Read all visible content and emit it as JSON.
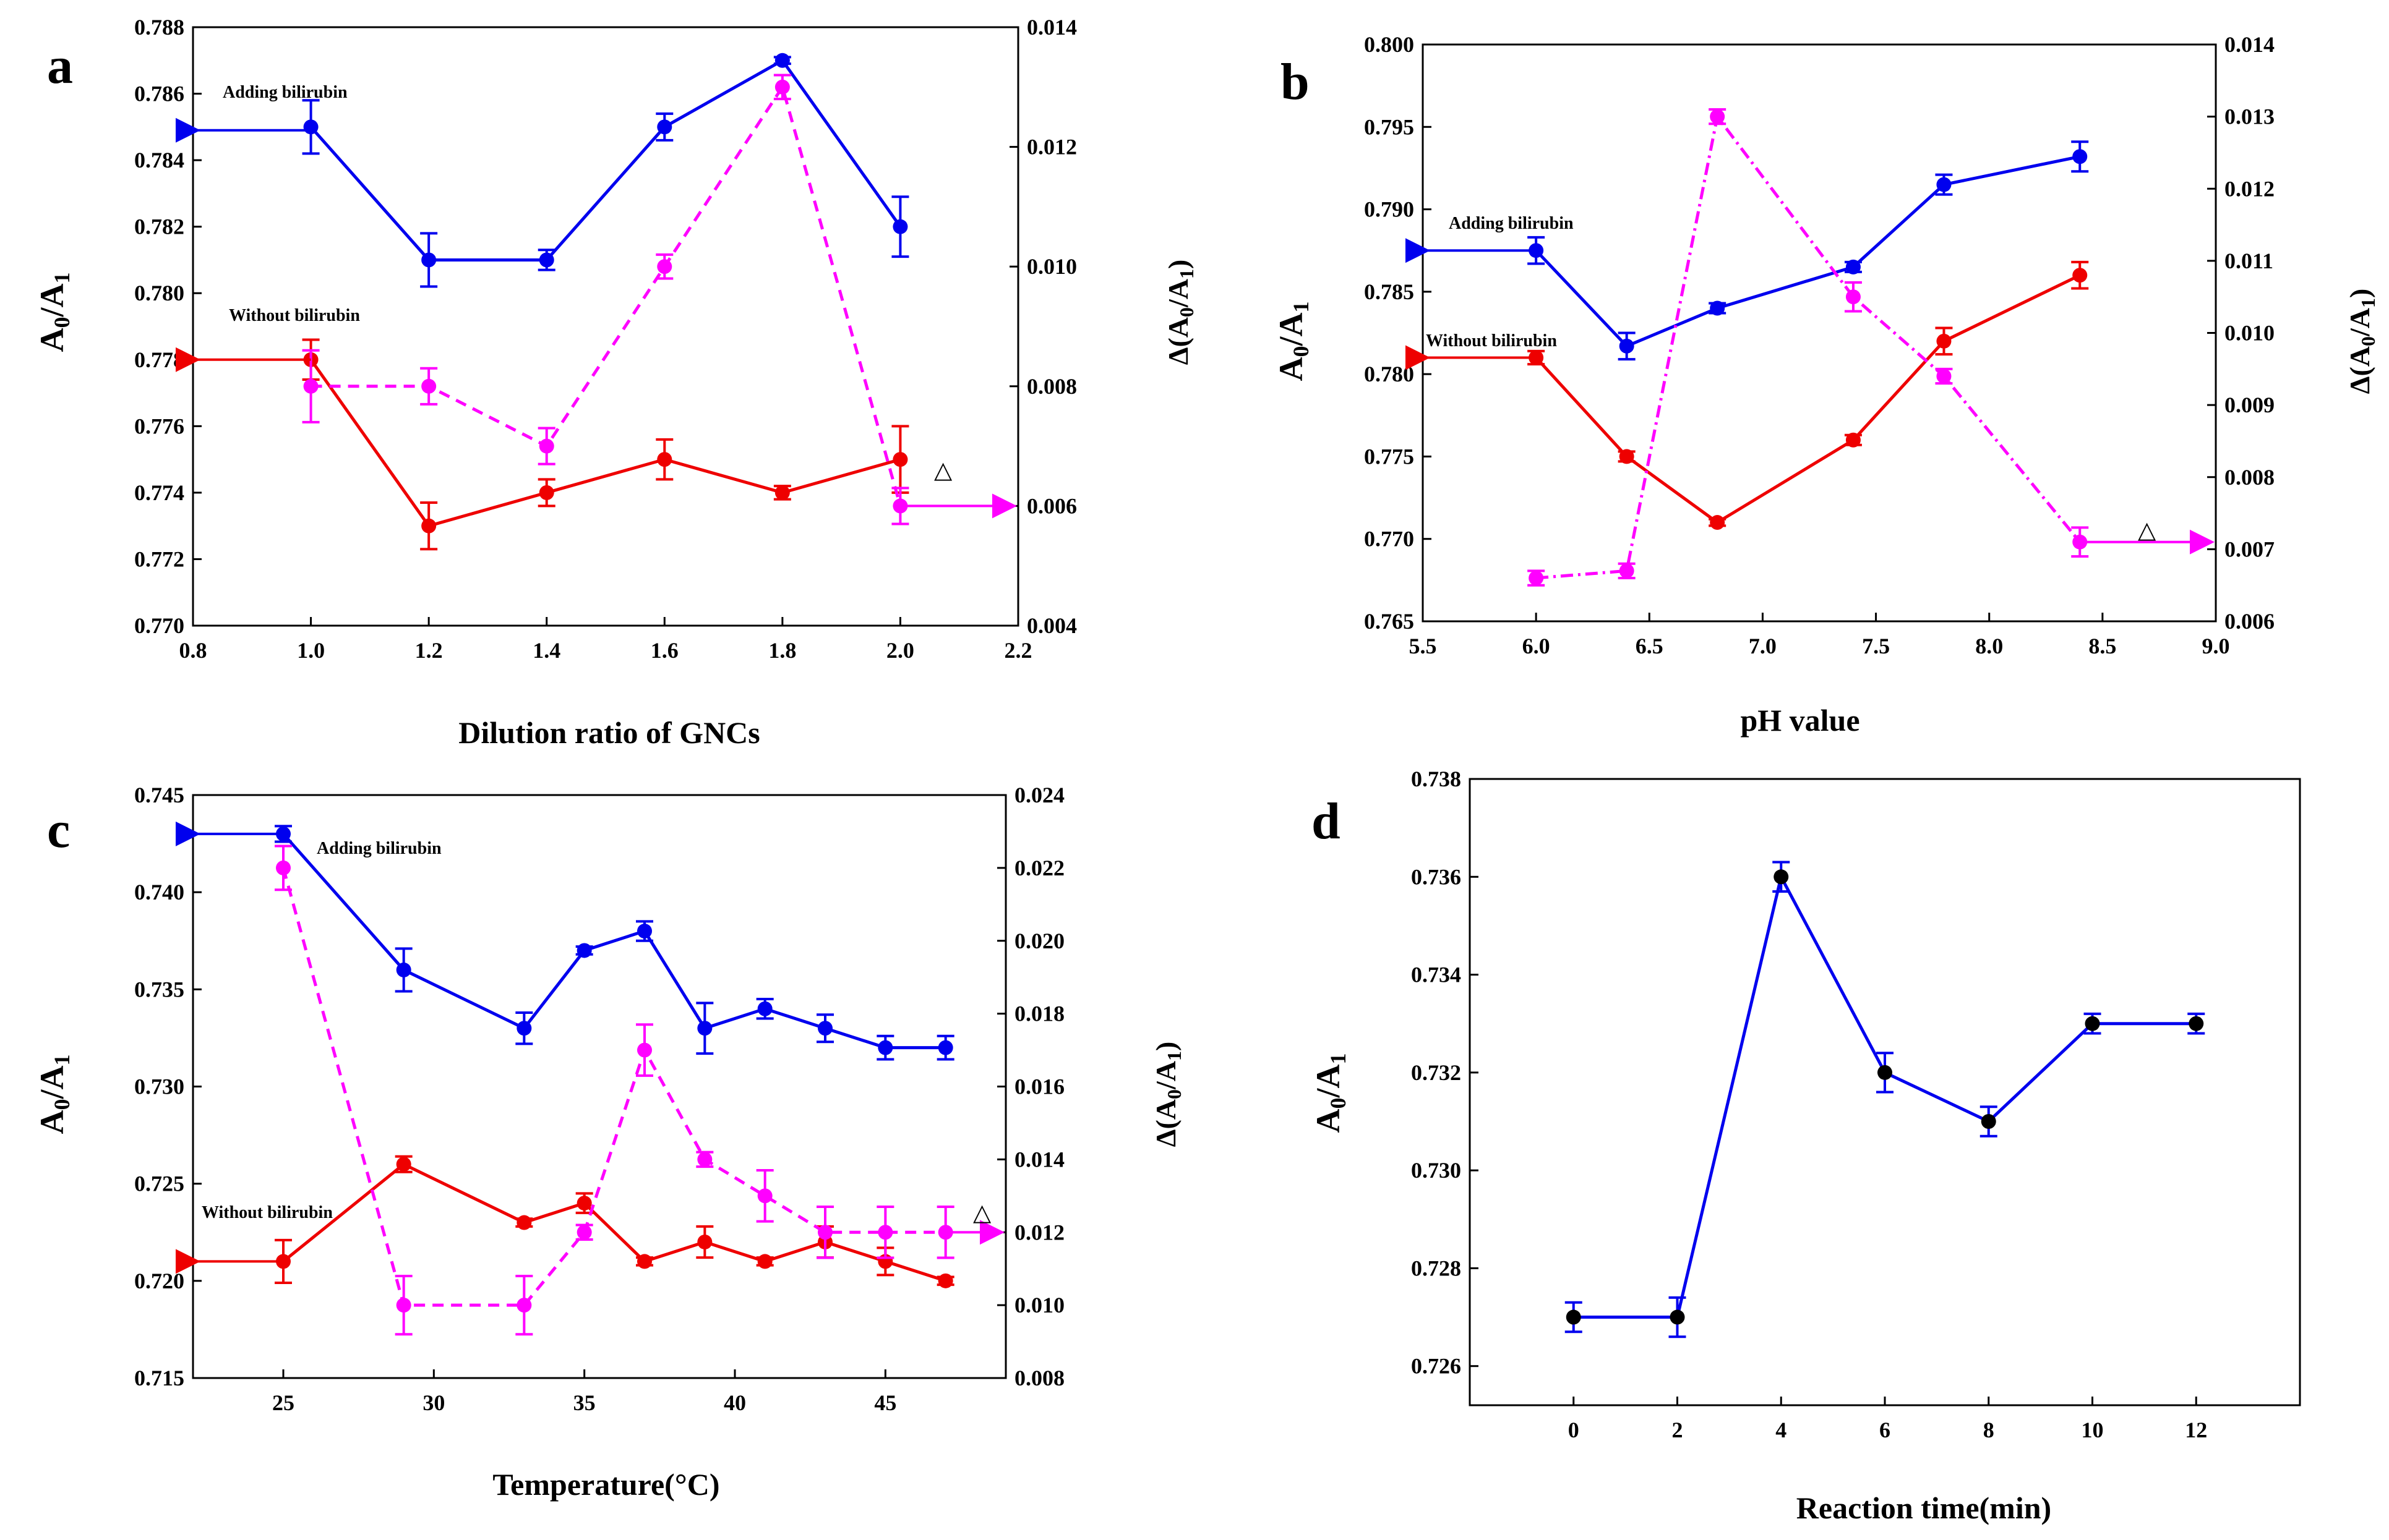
{
  "colors": {
    "adding": "#0000ee",
    "without": "#ee0000",
    "delta": "#ff00ff",
    "neutral": "#000000"
  },
  "chart_data": [
    {
      "panel": "a",
      "type": "line",
      "xlabel": "Dilution ratio of GNCs",
      "ylabel": "A0/A1",
      "y2label": "Δ(A0/A1)",
      "xlim": [
        0.8,
        2.2
      ],
      "ylim": [
        0.77,
        0.788
      ],
      "y2lim": [
        0.004,
        0.014
      ],
      "xticks": [
        "0.8",
        "1.0",
        "1.2",
        "1.4",
        "1.6",
        "1.8",
        "2.0",
        "2.2"
      ],
      "yticks": [
        "0.770",
        "0.772",
        "0.774",
        "0.776",
        "0.778",
        "0.780",
        "0.782",
        "0.784",
        "0.786",
        "0.788"
      ],
      "y2ticks": [
        "0.004",
        "0.006",
        "0.008",
        "0.010",
        "0.012",
        "0.014"
      ],
      "series": [
        {
          "name": "Adding bilirubin",
          "color": "#0000ee",
          "axis": "left",
          "dash": "",
          "x": [
            1.0,
            1.2,
            1.4,
            1.6,
            1.8,
            2.0
          ],
          "values": [
            0.785,
            0.781,
            0.781,
            0.785,
            0.787,
            0.782
          ],
          "err": [
            0.0008,
            0.0008,
            0.0003,
            0.0004,
            0.0001,
            0.0009
          ]
        },
        {
          "name": "Without bilirubin",
          "color": "#ee0000",
          "axis": "left",
          "dash": "",
          "x": [
            1.0,
            1.2,
            1.4,
            1.6,
            1.8,
            2.0
          ],
          "values": [
            0.778,
            0.773,
            0.774,
            0.775,
            0.774,
            0.775
          ],
          "err": [
            0.0006,
            0.0007,
            0.0004,
            0.0006,
            0.0002,
            0.001
          ]
        },
        {
          "name": "Δ",
          "color": "#ff00ff",
          "axis": "right",
          "dash": "18 12",
          "x": [
            1.0,
            1.2,
            1.4,
            1.6,
            1.8,
            2.0
          ],
          "values": [
            0.008,
            0.008,
            0.007,
            0.01,
            0.013,
            0.006
          ],
          "err": [
            0.0006,
            0.0003,
            0.0003,
            0.0002,
            0.0002,
            0.0003
          ]
        }
      ],
      "annotations": [
        "Adding bilirubin",
        "Without bilirubin",
        "△"
      ]
    },
    {
      "panel": "b",
      "type": "line",
      "xlabel": "pH value",
      "ylabel": "A0/A1",
      "y2label": "Δ(A0/A1)",
      "xlim": [
        5.5,
        9.0
      ],
      "ylim": [
        0.765,
        0.8
      ],
      "y2lim": [
        0.006,
        0.014
      ],
      "xticks": [
        "5.5",
        "6.0",
        "6.5",
        "7.0",
        "7.5",
        "8.0",
        "8.5",
        "9.0"
      ],
      "yticks": [
        "0.765",
        "0.770",
        "0.775",
        "0.780",
        "0.785",
        "0.790",
        "0.795",
        "0.800"
      ],
      "y2ticks": [
        "0.006",
        "0.007",
        "0.008",
        "0.009",
        "0.010",
        "0.011",
        "0.012",
        "0.013",
        "0.014"
      ],
      "series": [
        {
          "name": "Adding bilirubin",
          "color": "#0000ee",
          "axis": "left",
          "dash": "",
          "x": [
            6.0,
            6.4,
            6.8,
            7.4,
            7.8,
            8.4
          ],
          "values": [
            0.7875,
            0.7817,
            0.784,
            0.7865,
            0.7915,
            0.7932
          ],
          "err": [
            0.0008,
            0.0008,
            0.0003,
            0.0003,
            0.0006,
            0.0009
          ]
        },
        {
          "name": "Without bilirubin",
          "color": "#ee0000",
          "axis": "left",
          "dash": "",
          "x": [
            6.0,
            6.4,
            6.8,
            7.4,
            7.8,
            8.4
          ],
          "values": [
            0.781,
            0.775,
            0.771,
            0.776,
            0.782,
            0.786
          ],
          "err": [
            0.0004,
            0.0003,
            0.0002,
            0.0003,
            0.0008,
            0.0008
          ]
        },
        {
          "name": "Δ",
          "color": "#ff00ff",
          "axis": "right",
          "dash": "20 8 4 8",
          "x": [
            6.0,
            6.4,
            6.8,
            7.4,
            7.8,
            8.4
          ],
          "values": [
            0.0066,
            0.0067,
            0.013,
            0.0105,
            0.0094,
            0.0071
          ],
          "err": [
            0.0001,
            0.0001,
            0.0001,
            0.0002,
            0.0001,
            0.0002
          ]
        }
      ],
      "annotations": [
        "Adding bilirubin",
        "Without bilirubin",
        "△"
      ]
    },
    {
      "panel": "c",
      "type": "line",
      "xlabel": "Temperature(°C)",
      "ylabel": "A0/A1",
      "y2label": "Δ(A0/A1)",
      "xlim": [
        22,
        49
      ],
      "ylim": [
        0.715,
        0.745
      ],
      "y2lim": [
        0.008,
        0.024
      ],
      "xticks": [
        "25",
        "30",
        "35",
        "40",
        "45"
      ],
      "yticks": [
        "0.715",
        "0.720",
        "0.725",
        "0.730",
        "0.735",
        "0.740",
        "0.745"
      ],
      "y2ticks": [
        "0.008",
        "0.010",
        "0.012",
        "0.014",
        "0.016",
        "0.018",
        "0.020",
        "0.022",
        "0.024"
      ],
      "series": [
        {
          "name": "Adding bilirubin",
          "color": "#0000ee",
          "axis": "left",
          "dash": "",
          "x": [
            25,
            29,
            33,
            35,
            37,
            39,
            41,
            43,
            45,
            47
          ],
          "values": [
            0.743,
            0.736,
            0.733,
            0.737,
            0.738,
            0.733,
            0.734,
            0.733,
            0.732,
            0.732
          ],
          "err": [
            0.0004,
            0.0011,
            0.0008,
            0.0002,
            0.0005,
            0.0013,
            0.0005,
            0.0007,
            0.0006,
            0.0006
          ]
        },
        {
          "name": "Without bilirubin",
          "color": "#ee0000",
          "axis": "left",
          "dash": "",
          "x": [
            25,
            29,
            33,
            35,
            37,
            39,
            41,
            43,
            45,
            47
          ],
          "values": [
            0.721,
            0.726,
            0.723,
            0.724,
            0.721,
            0.722,
            0.721,
            0.722,
            0.721,
            0.72
          ],
          "err": [
            0.0011,
            0.0004,
            0.0002,
            0.0005,
            0.0002,
            0.0008,
            0.0002,
            0.0008,
            0.0007,
            0.0002
          ]
        },
        {
          "name": "Δ",
          "color": "#ff00ff",
          "axis": "right",
          "dash": "18 12",
          "x": [
            25,
            29,
            33,
            35,
            37,
            39,
            41,
            43,
            45,
            47
          ],
          "values": [
            0.022,
            0.01,
            0.01,
            0.012,
            0.017,
            0.014,
            0.013,
            0.012,
            0.012,
            0.012
          ],
          "err": [
            0.0006,
            0.0008,
            0.0008,
            0.0002,
            0.0007,
            0.0002,
            0.0007,
            0.0007,
            0.0007,
            0.0007
          ]
        }
      ],
      "annotations": [
        "Adding bilirubin",
        "Without bilirubin",
        "△"
      ]
    },
    {
      "panel": "d",
      "type": "line",
      "xlabel": "Reaction time(min)",
      "ylabel": "A0/A1",
      "xlim": [
        -2,
        14
      ],
      "ylim": [
        0.7252,
        0.738
      ],
      "xticks": [
        "0",
        "2",
        "4",
        "6",
        "8",
        "10",
        "12"
      ],
      "yticks": [
        "0.726",
        "0.728",
        "0.730",
        "0.732",
        "0.734",
        "0.736",
        "0.738"
      ],
      "series": [
        {
          "name": "A0/A1",
          "color": "#0000ee",
          "marker": "#000000",
          "axis": "left",
          "dash": "",
          "x": [
            0,
            2,
            4,
            6,
            8,
            10,
            12
          ],
          "values": [
            0.727,
            0.727,
            0.736,
            0.732,
            0.731,
            0.733,
            0.733
          ],
          "err": [
            0.0003,
            0.0004,
            0.0003,
            0.0004,
            0.0003,
            0.0002,
            0.0002
          ]
        }
      ]
    }
  ]
}
